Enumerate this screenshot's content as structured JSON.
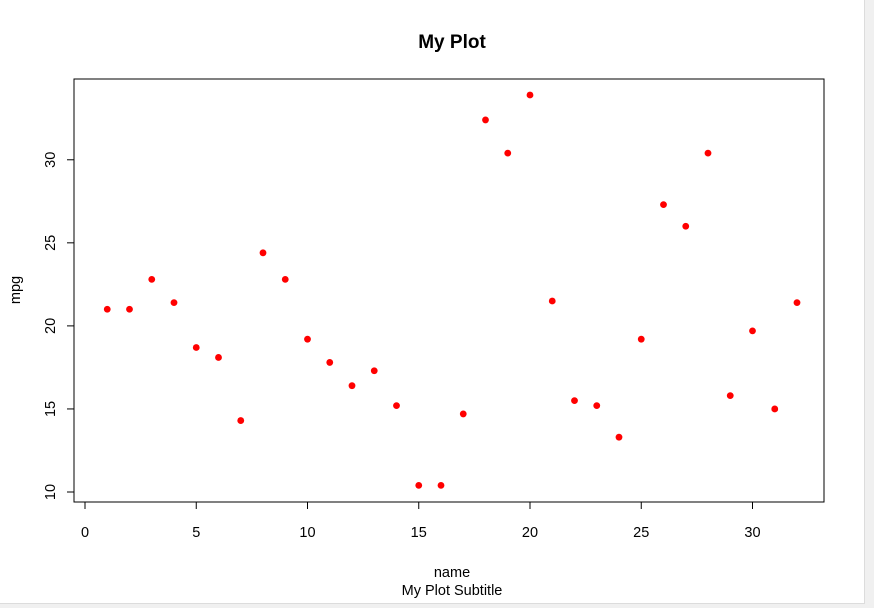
{
  "colors": {
    "point": "#ff0000",
    "axis": "#000000",
    "background": "#ffffff"
  },
  "chart_data": {
    "type": "scatter",
    "title": "My Plot",
    "subtitle": "My Plot Subtitle",
    "xlabel": "name",
    "ylabel": "mpg",
    "xlim": [
      0,
      32
    ],
    "ylim": [
      10,
      33.9
    ],
    "xticks": [
      0,
      5,
      10,
      15,
      20,
      25,
      30
    ],
    "yticks": [
      10,
      15,
      20,
      25,
      30
    ],
    "grid": false,
    "legend": "none",
    "point_color": "#ff0000",
    "x": [
      1,
      2,
      3,
      4,
      5,
      6,
      7,
      8,
      9,
      10,
      11,
      12,
      13,
      14,
      15,
      16,
      17,
      18,
      19,
      20,
      21,
      22,
      23,
      24,
      25,
      26,
      27,
      28,
      29,
      30,
      31,
      32
    ],
    "y": [
      21.0,
      21.0,
      22.8,
      21.4,
      18.7,
      18.1,
      14.3,
      24.4,
      22.8,
      19.2,
      17.8,
      16.4,
      17.3,
      15.2,
      10.4,
      10.4,
      14.7,
      32.4,
      30.4,
      33.9,
      21.5,
      15.5,
      15.2,
      13.3,
      19.2,
      27.3,
      26.0,
      30.4,
      15.8,
      19.7,
      15.0,
      21.4
    ]
  }
}
